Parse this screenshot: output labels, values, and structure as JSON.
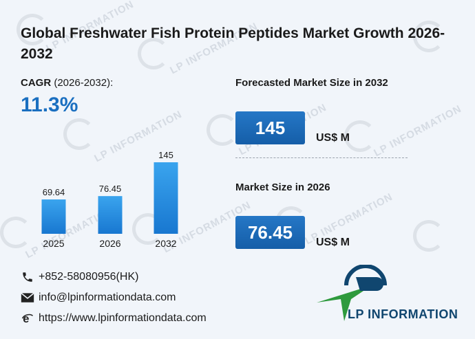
{
  "header": {
    "title": "Global Freshwater Fish Protein Peptides Market Growth 2026-2032"
  },
  "cagr": {
    "label": "CAGR",
    "period": "(2026-2032):",
    "value": "11.3%"
  },
  "forecast": {
    "label": "Forecasted Market Size in 2032",
    "value": "145",
    "unit": "US$ M"
  },
  "current": {
    "label": "Market Size in 2026",
    "value": "76.45",
    "unit": "US$ M"
  },
  "contacts": {
    "phone": "+852-58080956(HK)",
    "email": "info@lpinformationdata.com",
    "website": "https://www.lpinformationdata.com"
  },
  "logo": {
    "text": "LP INFORMATION"
  },
  "watermark": {
    "text": "LP INFORMATION"
  },
  "colors": {
    "accent": "#1a6fc0",
    "bar_top": "#3aa4ee",
    "bar_bottom": "#1877d0",
    "logo_green": "#2e9a3d",
    "logo_blue": "#10466f"
  },
  "chart_data": {
    "type": "bar",
    "categories": [
      "2025",
      "2026",
      "2032"
    ],
    "values": [
      69.64,
      76.45,
      145
    ],
    "value_labels": [
      "69.64",
      "76.45",
      "145"
    ],
    "ylim": [
      0,
      145
    ]
  }
}
